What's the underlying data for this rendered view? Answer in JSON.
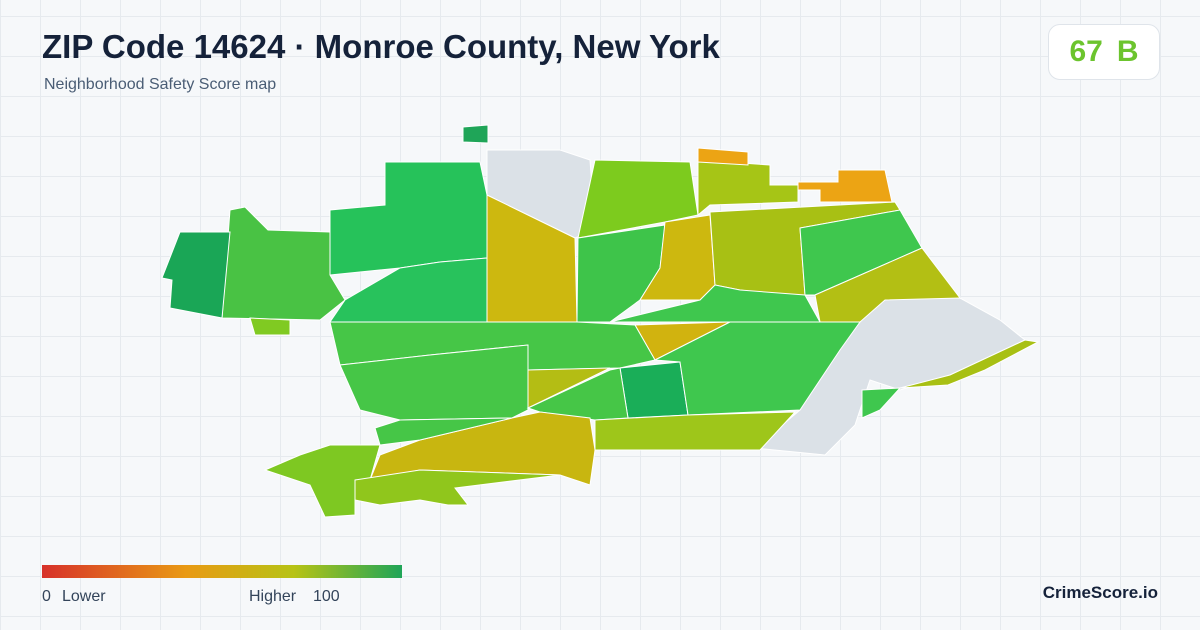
{
  "header": {
    "title": "ZIP Code 14624 · Monroe County, New York",
    "subtitle": "Neighborhood Safety Score map"
  },
  "score": {
    "value": "67",
    "grade": "B"
  },
  "legend": {
    "min": "0",
    "min_label": "Lower",
    "max_label": "Higher",
    "max": "100"
  },
  "brand": "CrimeScore.io"
}
